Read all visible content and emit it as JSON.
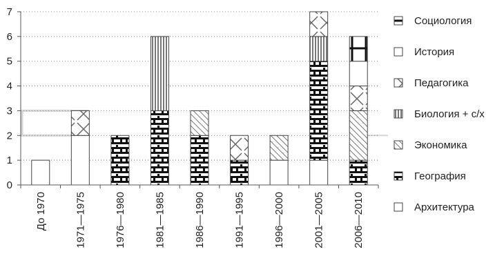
{
  "chart_data": {
    "type": "bar",
    "stacked": true,
    "categories": [
      "До 1970",
      "1971—1975",
      "1976—1980",
      "1981—1985",
      "1986—1990",
      "1991—1995",
      "1996—2000",
      "2001—2005",
      "2006—2010"
    ],
    "ylim": [
      0,
      7
    ],
    "yticks": [
      "0",
      "1",
      "2",
      "3",
      "4",
      "5",
      "6",
      "7"
    ],
    "grid": "horizontal dotted",
    "legend_position": "right",
    "series": [
      {
        "name": "Архитектура",
        "pattern": "blank",
        "values": [
          1,
          2,
          0,
          0,
          0,
          0,
          1,
          1,
          0
        ]
      },
      {
        "name": "География",
        "pattern": "brick",
        "values": [
          0,
          0,
          2,
          3,
          2,
          1,
          0,
          4,
          1
        ]
      },
      {
        "name": "Экономика",
        "pattern": "diagonal",
        "values": [
          0,
          0,
          0,
          0,
          1,
          0,
          1,
          0,
          2
        ]
      },
      {
        "name": "Биология + с/х",
        "pattern": "vertical",
        "values": [
          0,
          0,
          0,
          3,
          0,
          0,
          0,
          1,
          0
        ]
      },
      {
        "name": "Педагогика",
        "pattern": "cross",
        "values": [
          0,
          1,
          0,
          0,
          0,
          1,
          0,
          1,
          1
        ]
      },
      {
        "name": "История",
        "pattern": "blank",
        "values": [
          0,
          0,
          0,
          0,
          0,
          0,
          0,
          0,
          1
        ]
      },
      {
        "name": "Социология",
        "pattern": "plus",
        "values": [
          0,
          0,
          0,
          0,
          0,
          0,
          0,
          0,
          1
        ]
      }
    ],
    "legend_order": [
      "Социология",
      "История",
      "Педагогика",
      "Биология + с/х",
      "Экономика",
      "География",
      "Архитектура"
    ],
    "colors": {
      "axis": "#555555",
      "grid": "#888888",
      "bar_stroke": "#444444",
      "highlight": "#d5d5d5"
    }
  }
}
